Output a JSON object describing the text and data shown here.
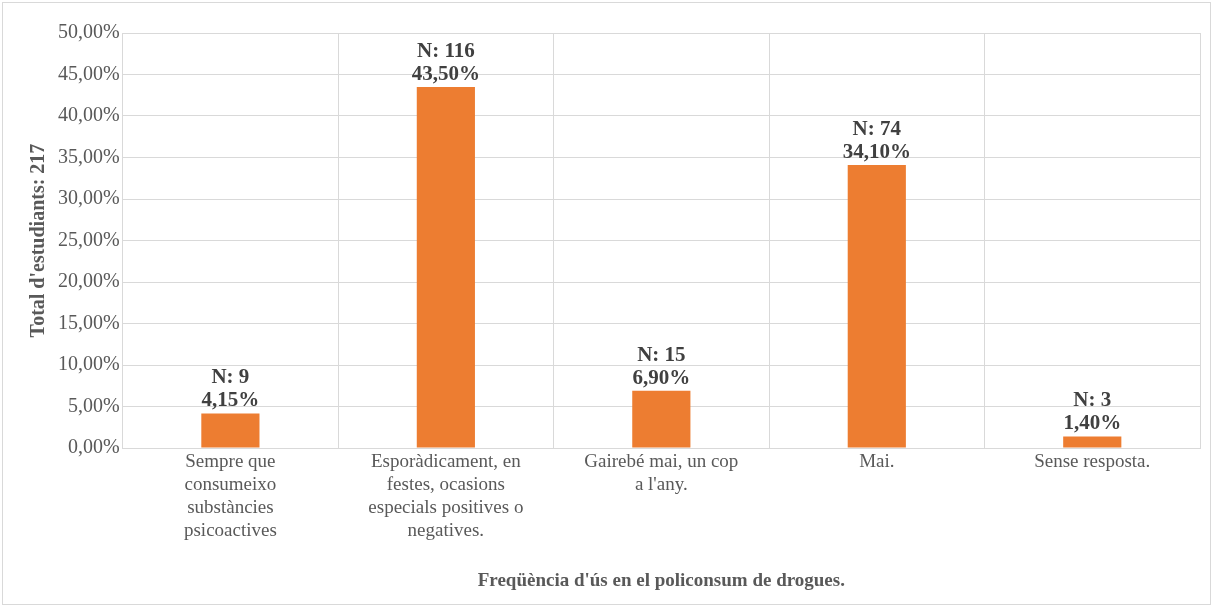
{
  "chart_data": {
    "type": "bar",
    "xlabel": "Freqüència d'ús en el policonsum de drogues.",
    "ylabel": "Total d'estudiants: 217",
    "categories": [
      "Sempre que consumeixo substàncies psicoactives",
      "Esporàdicament, en festes, ocasions especials positives o negatives.",
      "Gairebé mai, un cop a l'any.",
      "Mai.",
      "Sense resposta."
    ],
    "values": [
      4.15,
      43.5,
      6.9,
      34.1,
      1.4
    ],
    "color": "#ed7d31",
    "value_labels": [
      "N: 9\n4,15%",
      "N: 116\n43,50%",
      "N: 15\n6,90%",
      "N: 74\n34,10%",
      "N: 3\n1,40%"
    ],
    "ylim": [
      0,
      50
    ],
    "yticks": [
      {
        "value": 0,
        "label": "0,00%"
      },
      {
        "value": 5,
        "label": "5,00%"
      },
      {
        "value": 10,
        "label": "10,00%"
      },
      {
        "value": 15,
        "label": "15,00%"
      },
      {
        "value": 20,
        "label": "20,00%"
      },
      {
        "value": 25,
        "label": "25,00%"
      },
      {
        "value": 30,
        "label": "30,00%"
      },
      {
        "value": 35,
        "label": "35,00%"
      },
      {
        "value": 40,
        "label": "40,00%"
      },
      {
        "value": 45,
        "label": "45,00%"
      },
      {
        "value": 50,
        "label": "50,00%"
      }
    ],
    "grid": true,
    "legend": false
  }
}
